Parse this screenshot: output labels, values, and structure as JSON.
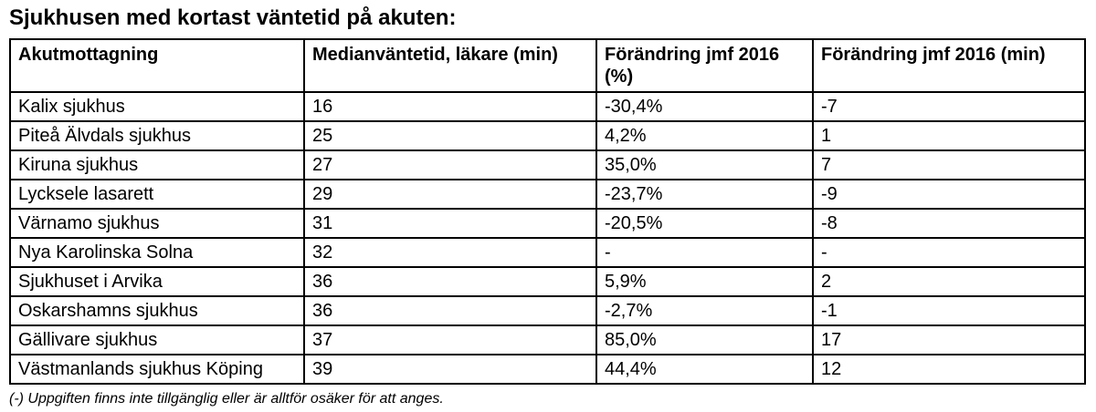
{
  "colors": {
    "background": "#ffffff",
    "text": "#000000",
    "border": "#000000"
  },
  "chart_data": {
    "type": "table",
    "title": "Sjukhusen med kortast väntetid på akuten:",
    "columns": [
      "Akutmottagning",
      "Medianväntetid, läkare (min)",
      "Förändring jmf 2016 (%)",
      "Förändring jmf 2016 (min)"
    ],
    "rows": [
      [
        "Kalix sjukhus",
        "16",
        "-30,4%",
        "-7"
      ],
      [
        "Piteå Älvdals sjukhus",
        "25",
        "4,2%",
        "1"
      ],
      [
        "Kiruna sjukhus",
        "27",
        "35,0%",
        "7"
      ],
      [
        "Lycksele lasarett",
        "29",
        "-23,7%",
        "-9"
      ],
      [
        "Värnamo sjukhus",
        "31",
        "-20,5%",
        "-8"
      ],
      [
        "Nya Karolinska Solna",
        "32",
        "-",
        "-"
      ],
      [
        "Sjukhuset i Arvika",
        "36",
        "5,9%",
        "2"
      ],
      [
        "Oskarshamns sjukhus",
        "36",
        "-2,7%",
        "-1"
      ],
      [
        "Gällivare sjukhus",
        "37",
        "85,0%",
        "17"
      ],
      [
        "Västmanlands sjukhus Köping",
        "39",
        "44,4%",
        "12"
      ]
    ],
    "footnote": "(-) Uppgiften finns inte tillgänglig eller är alltför osäker för att anges."
  }
}
